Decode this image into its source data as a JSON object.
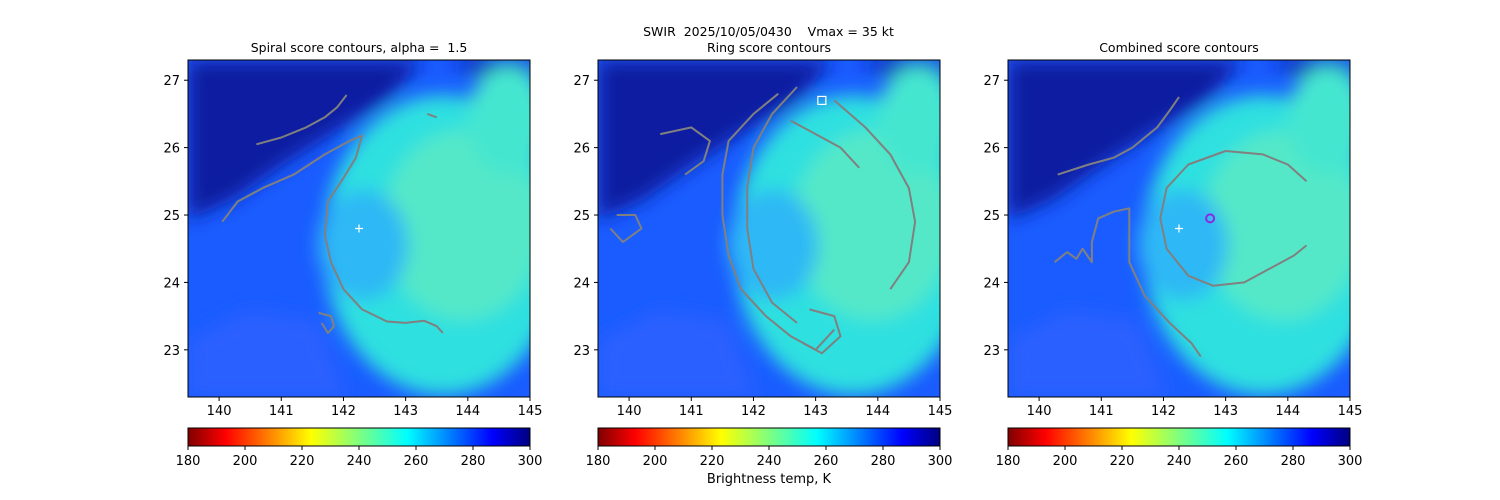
{
  "figure": {
    "suptitle": "SWIR  2025/10/05/0430    Vmax = 35 kt",
    "colorbar_label": "Brightness temp, K"
  },
  "chart_data": [
    {
      "type": "heatmap",
      "title": "Spiral score contours, alpha =  1.5",
      "xlim": [
        139.5,
        145.0
      ],
      "ylim": [
        22.3,
        27.3
      ],
      "xticks": [
        140,
        141,
        142,
        143,
        144,
        145
      ],
      "yticks": [
        23,
        24,
        25,
        26,
        27
      ],
      "colorbar": {
        "ticks": [
          180,
          200,
          220,
          240,
          260,
          280,
          300
        ],
        "range": [
          180,
          300
        ],
        "colormap": "jet_r"
      },
      "marker": {
        "symbol": "+",
        "lon": 142.25,
        "lat": 24.8,
        "color": "#ffffff"
      },
      "contours": [
        {
          "color": "#808080",
          "points": [
            [
              140.6,
              26.05
            ],
            [
              141.0,
              26.15
            ],
            [
              141.4,
              26.3
            ],
            [
              141.7,
              26.45
            ],
            [
              141.9,
              26.6
            ],
            [
              142.05,
              26.78
            ]
          ]
        },
        {
          "color": "#808080",
          "points": [
            [
              140.05,
              24.9
            ],
            [
              140.3,
              25.2
            ],
            [
              140.7,
              25.4
            ],
            [
              141.2,
              25.6
            ],
            [
              141.7,
              25.9
            ],
            [
              142.1,
              26.1
            ],
            [
              142.3,
              26.18
            ],
            [
              142.2,
              25.85
            ],
            [
              142.0,
              25.55
            ],
            [
              141.75,
              25.2
            ],
            [
              141.7,
              24.7
            ],
            [
              141.8,
              24.3
            ],
            [
              142.0,
              23.9
            ],
            [
              142.3,
              23.6
            ],
            [
              142.7,
              23.42
            ],
            [
              143.0,
              23.4
            ],
            [
              143.3,
              23.43
            ],
            [
              143.5,
              23.35
            ],
            [
              143.6,
              23.25
            ]
          ]
        },
        {
          "color": "#808080",
          "points": [
            [
              141.6,
              23.55
            ],
            [
              141.8,
              23.5
            ],
            [
              141.85,
              23.35
            ],
            [
              141.75,
              23.25
            ],
            [
              141.65,
              23.4
            ]
          ]
        },
        {
          "color": "#808080",
          "points": [
            [
              143.35,
              26.5
            ],
            [
              143.5,
              26.45
            ]
          ]
        }
      ]
    },
    {
      "type": "heatmap",
      "title": "Ring score contours",
      "xlim": [
        139.5,
        145.0
      ],
      "ylim": [
        22.3,
        27.3
      ],
      "xticks": [
        140,
        141,
        142,
        143,
        144,
        145
      ],
      "yticks": [
        23,
        24,
        25,
        26,
        27
      ],
      "colorbar": {
        "ticks": [
          180,
          200,
          220,
          240,
          260,
          280,
          300
        ],
        "range": [
          180,
          300
        ],
        "colormap": "jet_r"
      },
      "marker": {
        "symbol": "square",
        "lon": 143.1,
        "lat": 26.7,
        "color": "#ffffff"
      },
      "contours": [
        {
          "color": "#808080",
          "points": [
            [
              142.4,
              26.8
            ],
            [
              142.0,
              26.5
            ],
            [
              141.6,
              26.1
            ],
            [
              141.5,
              25.6
            ],
            [
              141.5,
              25.0
            ],
            [
              141.6,
              24.4
            ],
            [
              141.8,
              23.9
            ],
            [
              142.2,
              23.5
            ],
            [
              142.6,
              23.2
            ],
            [
              143.0,
              23.0
            ],
            [
              143.3,
              23.3
            ]
          ]
        },
        {
          "color": "#808080",
          "points": [
            [
              142.7,
              26.9
            ],
            [
              142.3,
              26.5
            ],
            [
              142.0,
              26.0
            ],
            [
              141.9,
              25.4
            ],
            [
              141.9,
              24.8
            ],
            [
              142.0,
              24.2
            ],
            [
              142.3,
              23.7
            ],
            [
              142.7,
              23.4
            ]
          ]
        },
        {
          "color": "#808080",
          "points": [
            [
              143.3,
              26.7
            ],
            [
              143.8,
              26.3
            ],
            [
              144.2,
              25.9
            ],
            [
              144.5,
              25.4
            ],
            [
              144.6,
              24.9
            ],
            [
              144.5,
              24.3
            ],
            [
              144.2,
              23.9
            ]
          ]
        },
        {
          "color": "#808080",
          "points": [
            [
              142.6,
              26.4
            ],
            [
              143.0,
              26.2
            ],
            [
              143.4,
              26.0
            ],
            [
              143.7,
              25.7
            ]
          ]
        },
        {
          "color": "#808080",
          "points": [
            [
              142.9,
              23.6
            ],
            [
              143.3,
              23.5
            ],
            [
              143.4,
              23.2
            ],
            [
              143.1,
              22.95
            ],
            [
              142.8,
              23.1
            ]
          ]
        },
        {
          "color": "#808080",
          "points": [
            [
              139.8,
              25.0
            ],
            [
              140.1,
              25.0
            ],
            [
              140.2,
              24.8
            ],
            [
              139.9,
              24.6
            ],
            [
              139.7,
              24.8
            ]
          ]
        },
        {
          "color": "#808080",
          "points": [
            [
              140.5,
              26.2
            ],
            [
              141.0,
              26.3
            ],
            [
              141.3,
              26.1
            ],
            [
              141.2,
              25.8
            ],
            [
              140.9,
              25.6
            ]
          ]
        }
      ]
    },
    {
      "type": "heatmap",
      "title": "Combined score contours",
      "xlim": [
        139.5,
        145.0
      ],
      "ylim": [
        22.3,
        27.3
      ],
      "xticks": [
        140,
        141,
        142,
        143,
        144,
        145
      ],
      "yticks": [
        23,
        24,
        25,
        26,
        27
      ],
      "colorbar": {
        "ticks": [
          180,
          200,
          220,
          240,
          260,
          280,
          300
        ],
        "range": [
          180,
          300
        ],
        "colormap": "jet_r"
      },
      "marker": {
        "symbol": "+",
        "lon": 142.25,
        "lat": 24.8,
        "color": "#ffffff"
      },
      "marker2": {
        "symbol": "circle",
        "lon": 142.75,
        "lat": 24.95,
        "color": "#8a2be2"
      },
      "contours": [
        {
          "color": "#808080",
          "points": [
            [
              140.3,
              25.6
            ],
            [
              140.8,
              25.75
            ],
            [
              141.2,
              25.85
            ],
            [
              141.5,
              26.0
            ],
            [
              141.9,
              26.3
            ],
            [
              142.1,
              26.55
            ],
            [
              142.25,
              26.75
            ]
          ]
        },
        {
          "color": "#808080",
          "points": [
            [
              144.3,
              25.5
            ],
            [
              144.0,
              25.75
            ],
            [
              143.6,
              25.9
            ],
            [
              143.0,
              25.95
            ],
            [
              142.4,
              25.75
            ],
            [
              142.05,
              25.4
            ],
            [
              141.95,
              24.95
            ],
            [
              142.05,
              24.5
            ],
            [
              142.4,
              24.1
            ],
            [
              142.8,
              23.95
            ],
            [
              143.3,
              24.0
            ],
            [
              143.7,
              24.2
            ],
            [
              144.1,
              24.4
            ],
            [
              144.3,
              24.55
            ]
          ]
        },
        {
          "color": "#808080",
          "points": [
            [
              140.25,
              24.3
            ],
            [
              140.45,
              24.45
            ],
            [
              140.6,
              24.35
            ],
            [
              140.7,
              24.5
            ],
            [
              140.85,
              24.3
            ],
            [
              140.85,
              24.6
            ],
            [
              140.95,
              24.95
            ],
            [
              141.2,
              25.05
            ],
            [
              141.45,
              25.1
            ],
            [
              141.45,
              24.7
            ],
            [
              141.45,
              24.3
            ],
            [
              141.7,
              23.8
            ],
            [
              142.1,
              23.4
            ],
            [
              142.45,
              23.1
            ],
            [
              142.6,
              22.9
            ]
          ]
        }
      ]
    }
  ]
}
